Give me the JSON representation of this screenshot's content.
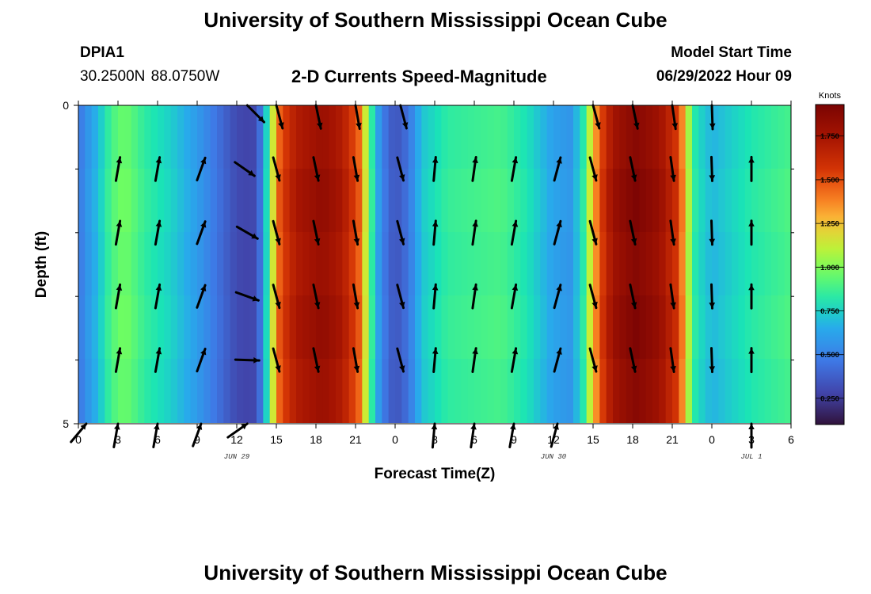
{
  "page": {
    "title": "University of Southern Mississippi Ocean Cube",
    "station": {
      "name": "DPIA1",
      "coords": "30.2500N  88.0750W"
    },
    "model_start": {
      "label": "Model Start Time",
      "value": "06/29/2022 Hour 09"
    },
    "footer_title": "University of Southern Mississippi Ocean Cube"
  },
  "chart_data": {
    "type": "heatmap",
    "title": "2-D Currents Speed-Magnitude",
    "xlabel": "Forecast Time(Z)",
    "ylabel": "Depth (ft)",
    "x_start_hour": 0,
    "x_end_hour": 54,
    "x_ticks": [
      {
        "hour": 0,
        "label": "0"
      },
      {
        "hour": 3,
        "label": "3"
      },
      {
        "hour": 6,
        "label": "6"
      },
      {
        "hour": 9,
        "label": "9"
      },
      {
        "hour": 12,
        "label": "12"
      },
      {
        "hour": 15,
        "label": "15"
      },
      {
        "hour": 18,
        "label": "18"
      },
      {
        "hour": 21,
        "label": "21"
      },
      {
        "hour": 24,
        "label": "0"
      },
      {
        "hour": 27,
        "label": "3"
      },
      {
        "hour": 30,
        "label": "6"
      },
      {
        "hour": 33,
        "label": "9"
      },
      {
        "hour": 36,
        "label": "12"
      },
      {
        "hour": 39,
        "label": "15"
      },
      {
        "hour": 42,
        "label": "18"
      },
      {
        "hour": 45,
        "label": "21"
      },
      {
        "hour": 48,
        "label": "0"
      },
      {
        "hour": 51,
        "label": "3"
      },
      {
        "hour": 54,
        "label": "6"
      }
    ],
    "date_labels": [
      {
        "hour": 12,
        "label": "JUN 29"
      },
      {
        "hour": 36,
        "label": "JUN 30"
      },
      {
        "hour": 51,
        "label": "JUL 1"
      }
    ],
    "y_range": [
      0,
      5
    ],
    "y_tick_labels": [
      {
        "depth": 0,
        "label": "0"
      },
      {
        "depth": 5,
        "label": "5"
      }
    ],
    "y_minor_ticks": [
      1,
      2,
      3,
      4
    ],
    "depth_levels": [
      0,
      1,
      2,
      3,
      4,
      5
    ],
    "colorbar": {
      "unit": "Knots",
      "min": 0.1,
      "max": 1.93,
      "ticks": [
        0.25,
        0.5,
        0.75,
        1.0,
        1.25,
        1.5,
        1.75
      ],
      "tick_labels": [
        "0.250",
        "0.500",
        "0.750",
        "1.000",
        "1.250",
        "1.500",
        "1.750"
      ]
    },
    "speed_profile": [
      {
        "hour": 0,
        "speed": 0.45
      },
      {
        "hour": 0.5,
        "speed": 0.55
      },
      {
        "hour": 1.5,
        "speed": 0.7
      },
      {
        "hour": 2.5,
        "speed": 0.9
      },
      {
        "hour": 3.5,
        "speed": 0.98
      },
      {
        "hour": 5,
        "speed": 0.85
      },
      {
        "hour": 7,
        "speed": 0.75
      },
      {
        "hour": 9,
        "speed": 0.6
      },
      {
        "hour": 10.5,
        "speed": 0.45
      },
      {
        "hour": 12,
        "speed": 0.3
      },
      {
        "hour": 13.2,
        "speed": 0.28
      },
      {
        "hour": 13.8,
        "speed": 0.45
      },
      {
        "hour": 14.3,
        "speed": 0.8
      },
      {
        "hour": 14.8,
        "speed": 1.2
      },
      {
        "hour": 15.3,
        "speed": 1.5
      },
      {
        "hour": 16.5,
        "speed": 1.72
      },
      {
        "hour": 18.5,
        "speed": 1.82
      },
      {
        "hour": 20,
        "speed": 1.72
      },
      {
        "hour": 21.3,
        "speed": 1.45
      },
      {
        "hour": 21.9,
        "speed": 1.05
      },
      {
        "hour": 22.4,
        "speed": 0.75
      },
      {
        "hour": 23,
        "speed": 0.5
      },
      {
        "hour": 24,
        "speed": 0.33
      },
      {
        "hour": 25,
        "speed": 0.45
      },
      {
        "hour": 26,
        "speed": 0.72
      },
      {
        "hour": 28,
        "speed": 0.85
      },
      {
        "hour": 32,
        "speed": 0.9
      },
      {
        "hour": 34,
        "speed": 0.8
      },
      {
        "hour": 36,
        "speed": 0.62
      },
      {
        "hour": 37.3,
        "speed": 0.58
      },
      {
        "hour": 38.2,
        "speed": 0.8
      },
      {
        "hour": 38.8,
        "speed": 1.15
      },
      {
        "hour": 39.5,
        "speed": 1.5
      },
      {
        "hour": 40.5,
        "speed": 1.78
      },
      {
        "hour": 42.2,
        "speed": 1.9
      },
      {
        "hour": 44,
        "speed": 1.8
      },
      {
        "hour": 45.5,
        "speed": 1.55
      },
      {
        "hour": 46.2,
        "speed": 1.1
      },
      {
        "hour": 46.8,
        "speed": 0.8
      },
      {
        "hour": 48,
        "speed": 0.68
      },
      {
        "hour": 51,
        "speed": 0.82
      },
      {
        "hour": 54,
        "speed": 0.9
      }
    ],
    "vector_columns": [
      {
        "hour": 0.6,
        "angle": 40,
        "depths": [
          5
        ]
      },
      {
        "hour": 3,
        "angle": 10,
        "depths": [
          1,
          2,
          3,
          4,
          5
        ]
      },
      {
        "hour": 6,
        "angle": 10,
        "depths": [
          1,
          2,
          3,
          4,
          5
        ]
      },
      {
        "hour": 9.3,
        "angle": 20,
        "depths": [
          1,
          2,
          3,
          4,
          5
        ]
      },
      {
        "hour": 12.8,
        "angle": 135,
        "depths": [
          0
        ]
      },
      {
        "hour": 12.6,
        "angle": 125,
        "depths": [
          1
        ]
      },
      {
        "hour": 12.8,
        "angle": 120,
        "depths": [
          2
        ]
      },
      {
        "hour": 12.8,
        "angle": 110,
        "depths": [
          3
        ]
      },
      {
        "hour": 12.8,
        "angle": 92,
        "depths": [
          4
        ]
      },
      {
        "hour": 12.8,
        "angle": 55,
        "depths": [
          5
        ]
      },
      {
        "hour": 15,
        "angle": 165,
        "depths": [
          0,
          1,
          2,
          3,
          4
        ]
      },
      {
        "hour": 18,
        "angle": 168,
        "depths": [
          0,
          1,
          2,
          3,
          4
        ]
      },
      {
        "hour": 21,
        "angle": 170,
        "depths": [
          0,
          1,
          2,
          3,
          4
        ]
      },
      {
        "hour": 24.4,
        "angle": 165,
        "depths": [
          0,
          1,
          2,
          3,
          4
        ]
      },
      {
        "hour": 27,
        "angle": 5,
        "depths": [
          1,
          2,
          3,
          4,
          5
        ]
      },
      {
        "hour": 30,
        "angle": 8,
        "depths": [
          1,
          2,
          3,
          4,
          5
        ]
      },
      {
        "hour": 33,
        "angle": 10,
        "depths": [
          1,
          2,
          3,
          4,
          5
        ]
      },
      {
        "hour": 36.3,
        "angle": 15,
        "depths": [
          1,
          2,
          3,
          4,
          5
        ]
      },
      {
        "hour": 39,
        "angle": 165,
        "depths": [
          0,
          1,
          2,
          3,
          4
        ]
      },
      {
        "hour": 42,
        "angle": 168,
        "depths": [
          0,
          1,
          2,
          3,
          4
        ]
      },
      {
        "hour": 45,
        "angle": 172,
        "depths": [
          0,
          1,
          2,
          3,
          4
        ]
      },
      {
        "hour": 48,
        "angle": 178,
        "depths": [
          0,
          1,
          2,
          3,
          4
        ]
      },
      {
        "hour": 51,
        "angle": 0,
        "depths": [
          1,
          2,
          3,
          4,
          5
        ]
      }
    ]
  }
}
